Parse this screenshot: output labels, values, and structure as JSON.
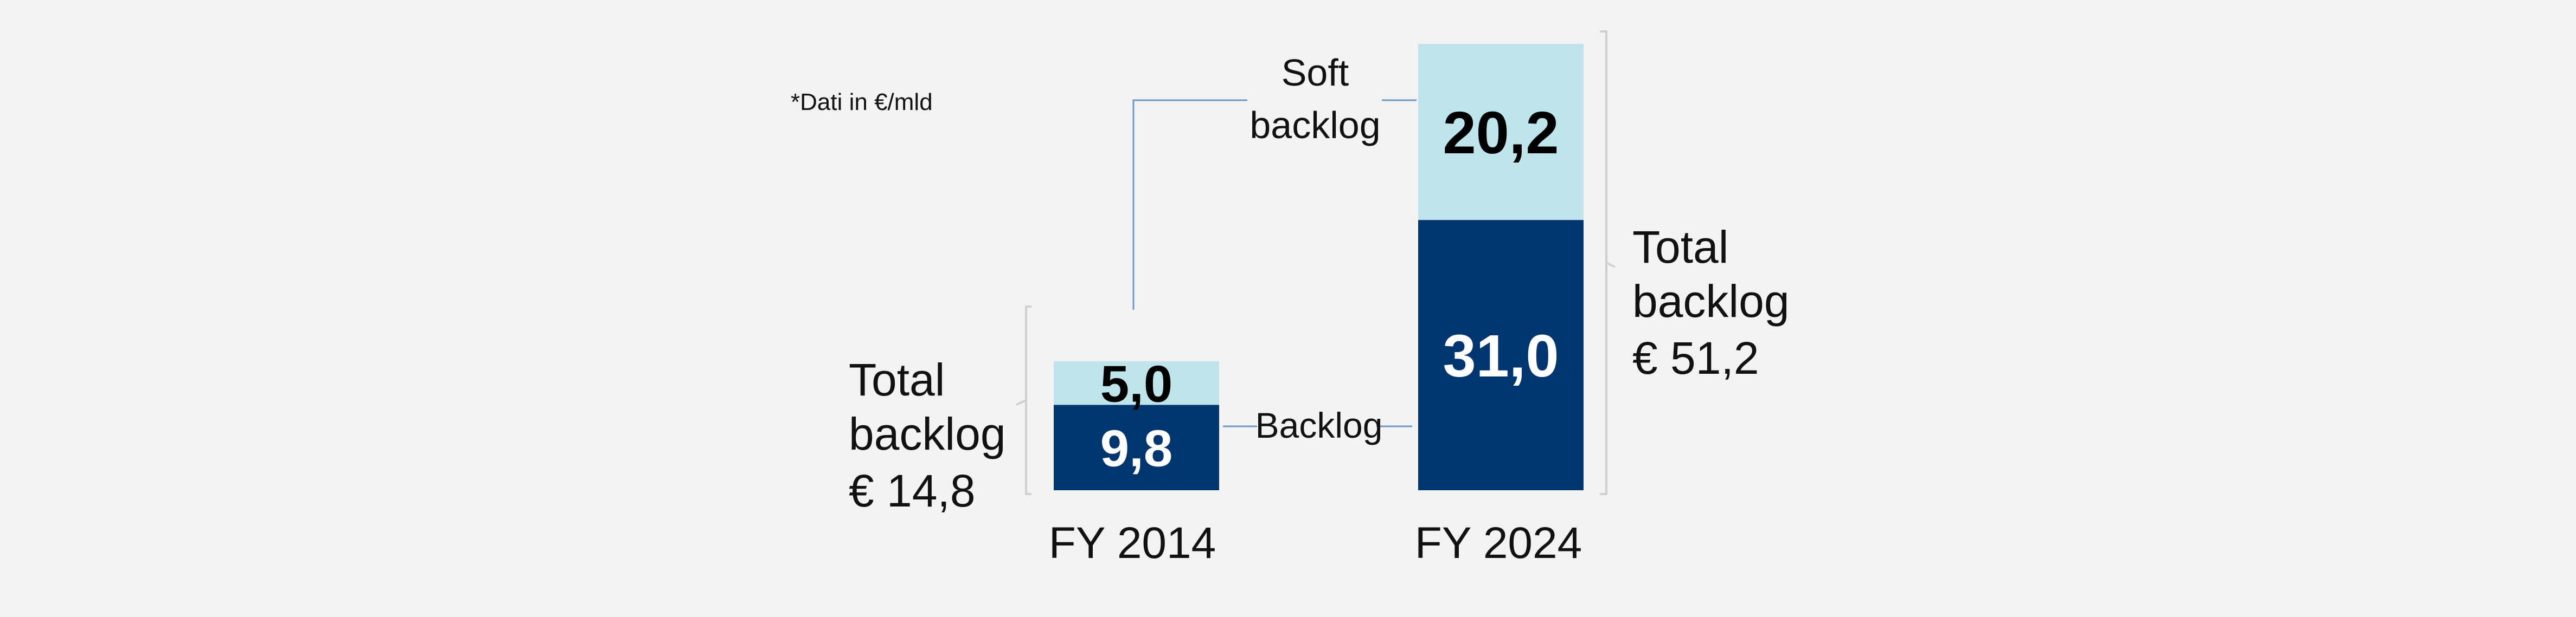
{
  "note": "*Dati in €/mld",
  "labels": {
    "soft_line1": "Soft",
    "soft_line2": "backlog",
    "backlog": "Backlog"
  },
  "colors": {
    "backlog": "#003670",
    "soft_backlog": "#bfe5ec",
    "background": "#f3f3f3",
    "connector": "#6f97c4",
    "bracket": "#d0d0d0"
  },
  "chart_data": {
    "type": "bar",
    "stacked": true,
    "categories": [
      "FY 2014",
      "FY 2024"
    ],
    "series": [
      {
        "name": "Backlog",
        "values": [
          9.8,
          31.0
        ],
        "labels": [
          "9,8",
          "31,0"
        ]
      },
      {
        "name": "Soft backlog",
        "values": [
          5.0,
          20.2
        ],
        "labels": [
          "5,0",
          "20,2"
        ]
      }
    ],
    "totals": [
      {
        "line1": "Total",
        "line2": "backlog",
        "line3": "€ 14,8",
        "value": 14.8
      },
      {
        "line1": "Total",
        "line2": "backlog",
        "line3": "€ 51,2",
        "value": 51.2
      }
    ],
    "ylim": [
      0,
      51.2
    ],
    "grid": false,
    "legend": "none"
  }
}
